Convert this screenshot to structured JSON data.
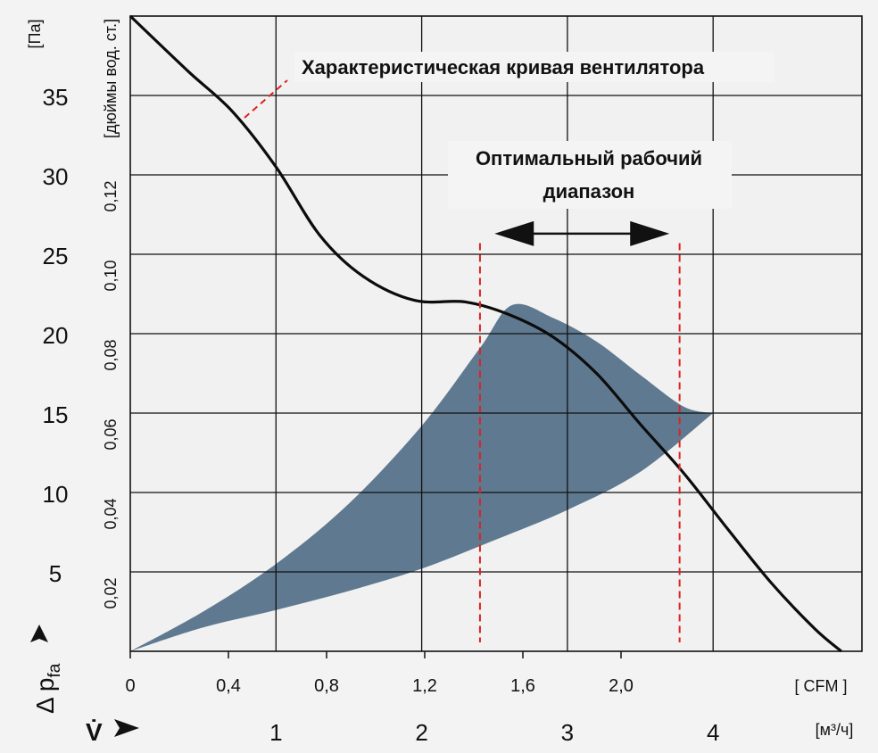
{
  "chart_data": {
    "type": "line",
    "title": "",
    "axes": {
      "left_y": {
        "label": "[Па]",
        "unit": "Па",
        "ticks": [
          "5",
          "10",
          "15",
          "20",
          "25",
          "30",
          "35"
        ],
        "range": [
          0,
          40
        ]
      },
      "inner_y": {
        "label": "[дюймы вод. ст.]",
        "ticks": [
          "0,02",
          "0,04",
          "0,06",
          "0,08",
          "0,10",
          "0,12"
        ]
      },
      "x_cfm": {
        "label": "[ CFM ]",
        "ticks": [
          "0",
          "0,4",
          "0,8",
          "1,2",
          "1,6",
          "2,0"
        ]
      },
      "x_m3h": {
        "label": "[м³/ч]",
        "ticks": [
          "1",
          "2",
          "3",
          "4"
        ],
        "range": [
          0,
          5
        ]
      },
      "y_symbol": "Δ p",
      "y_symbol_sub": "fa",
      "x_symbol": "V̇"
    },
    "grid": true,
    "series": [
      {
        "name": "Характеристическая кривая вентилятора",
        "x_unit": "м³/ч",
        "y_unit": "Па",
        "points": [
          [
            0.0,
            40.0
          ],
          [
            0.4,
            36.5
          ],
          [
            0.7,
            34.0
          ],
          [
            1.0,
            30.5
          ],
          [
            1.3,
            26.2
          ],
          [
            1.6,
            23.6
          ],
          [
            1.95,
            22.1
          ],
          [
            2.3,
            22.0
          ],
          [
            2.6,
            21.2
          ],
          [
            2.9,
            19.8
          ],
          [
            3.2,
            17.5
          ],
          [
            3.5,
            14.3
          ],
          [
            3.8,
            11.2
          ],
          [
            4.1,
            7.7
          ],
          [
            4.4,
            4.3
          ],
          [
            4.7,
            1.4
          ],
          [
            4.88,
            0.0
          ]
        ]
      }
    ],
    "region": {
      "color": "#5f7990",
      "upper_boundary": [
        [
          0.0,
          0.0
        ],
        [
          0.5,
          2.5
        ],
        [
          1.0,
          5.5
        ],
        [
          1.5,
          9.3
        ],
        [
          2.0,
          14.2
        ],
        [
          2.4,
          19.1
        ],
        [
          2.62,
          21.8
        ],
        [
          2.9,
          21.0
        ],
        [
          3.2,
          19.5
        ],
        [
          3.5,
          17.4
        ],
        [
          3.8,
          15.4
        ],
        [
          4.0,
          15.0
        ]
      ],
      "lower_boundary": [
        [
          0.0,
          0.0
        ],
        [
          0.5,
          1.5
        ],
        [
          1.0,
          2.6
        ],
        [
          1.5,
          3.8
        ],
        [
          2.0,
          5.2
        ],
        [
          2.5,
          7.0
        ],
        [
          3.0,
          8.9
        ],
        [
          3.5,
          11.3
        ],
        [
          4.0,
          15.0
        ]
      ]
    },
    "annotations": {
      "curve_label": "Характеристическая кривая вентилятора",
      "range_label_line1": "Оптимальный рабочий",
      "range_label_line2": "диапазон",
      "range_x": [
        2.4,
        3.77
      ],
      "range_arrow_x": [
        2.5,
        3.7
      ],
      "range_arrow_y": 26.3
    }
  }
}
